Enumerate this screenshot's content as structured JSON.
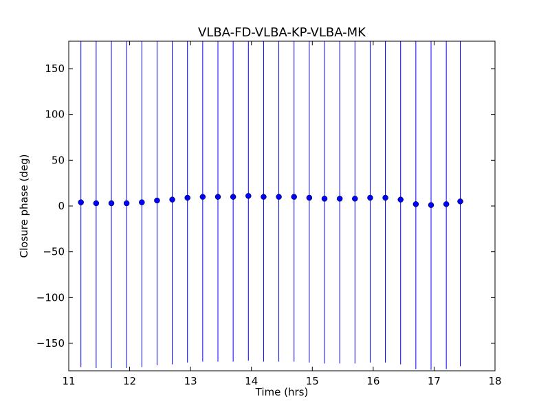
{
  "chart_data": {
    "type": "scatter",
    "title": "VLBA-FD-VLBA-KP-VLBA-MK",
    "xlabel": "Time (hrs)",
    "ylabel": "Closure phase (deg)",
    "xlim": [
      11,
      18
    ],
    "ylim": [
      -180,
      180
    ],
    "xticks": [
      11,
      12,
      13,
      14,
      15,
      16,
      17,
      18
    ],
    "yticks": [
      -150,
      -100,
      -50,
      0,
      50,
      100,
      150
    ],
    "ytick_labels": [
      "−150",
      "−100",
      "−50",
      "0",
      "50",
      "100",
      "150"
    ],
    "grid": false,
    "marker_color": "#0000ff",
    "errorbar_color": "#0000ff",
    "series": [
      {
        "x": [
          11.2,
          11.45,
          11.7,
          11.95,
          12.2,
          12.45,
          12.7,
          12.95,
          13.2,
          13.45,
          13.7,
          13.95,
          14.2,
          14.45,
          14.7,
          14.95,
          15.2,
          15.45,
          15.7,
          15.95,
          16.2,
          16.45,
          16.7,
          16.95,
          17.2,
          17.43
        ],
        "y": [
          4,
          3,
          3,
          3,
          4,
          6,
          7,
          9,
          10,
          10,
          10,
          11,
          10,
          10,
          10,
          9,
          8,
          8,
          8,
          9,
          9,
          7,
          2,
          1,
          2,
          5
        ],
        "error": [
          180,
          180,
          180,
          180,
          180,
          180,
          180,
          180,
          180,
          180,
          180,
          180,
          180,
          180,
          180,
          180,
          180,
          180,
          180,
          180,
          180,
          180,
          180,
          180,
          180,
          180
        ]
      }
    ]
  }
}
